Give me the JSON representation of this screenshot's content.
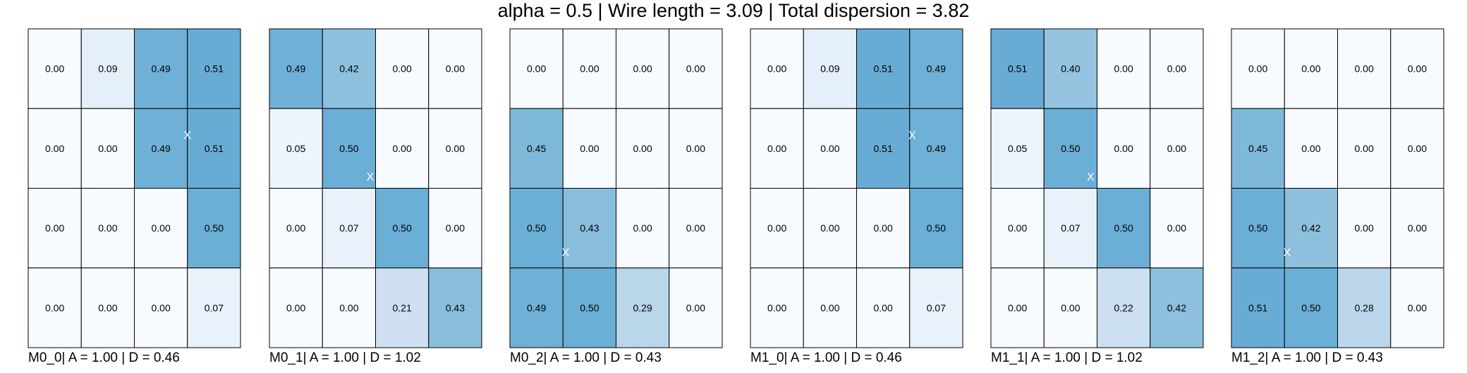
{
  "chart_data": {
    "type": "heatmap",
    "title": "alpha = 0.5 | Wire length = 3.09 | Total dispersion = 3.82",
    "colormap": "Blues",
    "vmin": 0,
    "vmax": 1,
    "cell_text_color": "#000000",
    "marker_color": "#ffffff",
    "marker_symbol": "X",
    "panels": [
      {
        "name": "M0_0",
        "label": "M0_0| A = 1.00 | D = 0.46",
        "values": [
          [
            0.0,
            0.09,
            0.49,
            0.51
          ],
          [
            0.0,
            0.0,
            0.49,
            0.51
          ],
          [
            0.0,
            0.0,
            0.0,
            0.5
          ],
          [
            0.0,
            0.0,
            0.0,
            0.07
          ]
        ],
        "labels": [
          [
            "0.00",
            "0.09",
            "0.49",
            "0.51"
          ],
          [
            "0.00",
            "0.00",
            "0.49",
            "0.51"
          ],
          [
            "0.00",
            "0.00",
            "0.00",
            "0.50"
          ],
          [
            "0.00",
            "0.00",
            "0.00",
            "0.07"
          ]
        ],
        "marker": {
          "row": 1.33,
          "col": 3.0
        }
      },
      {
        "name": "M0_1",
        "label": "M0_1| A = 1.00 | D = 1.02",
        "values": [
          [
            0.49,
            0.42,
            0.0,
            0.0
          ],
          [
            0.05,
            0.5,
            0.0,
            0.0
          ],
          [
            0.0,
            0.07,
            0.5,
            0.0
          ],
          [
            0.0,
            0.0,
            0.21,
            0.43
          ]
        ],
        "labels": [
          [
            "0.49",
            "0.42",
            "0.00",
            "0.00"
          ],
          [
            "0.05",
            "0.50",
            "0.00",
            "0.00"
          ],
          [
            "0.00",
            "0.07",
            "0.50",
            "0.00"
          ],
          [
            "0.00",
            "0.00",
            "0.21",
            "0.43"
          ]
        ],
        "marker": {
          "row": 1.85,
          "col": 1.9
        }
      },
      {
        "name": "M0_2",
        "label": "M0_2| A = 1.00 | D = 0.43",
        "values": [
          [
            0.0,
            0.0,
            0.0,
            0.0
          ],
          [
            0.45,
            0.0,
            0.0,
            0.0
          ],
          [
            0.5,
            0.43,
            0.0,
            0.0
          ],
          [
            0.49,
            0.5,
            0.29,
            0.0
          ]
        ],
        "labels": [
          [
            "0.00",
            "0.00",
            "0.00",
            "0.00"
          ],
          [
            "0.45",
            "0.00",
            "0.00",
            "0.00"
          ],
          [
            "0.50",
            "0.43",
            "0.00",
            "0.00"
          ],
          [
            "0.49",
            "0.50",
            "0.29",
            "0.00"
          ]
        ],
        "marker": {
          "row": 2.8,
          "col": 1.05
        }
      },
      {
        "name": "M1_0",
        "label": "M1_0| A = 1.00 | D = 0.46",
        "values": [
          [
            0.0,
            0.09,
            0.51,
            0.49
          ],
          [
            0.0,
            0.0,
            0.51,
            0.49
          ],
          [
            0.0,
            0.0,
            0.0,
            0.5
          ],
          [
            0.0,
            0.0,
            0.0,
            0.07
          ]
        ],
        "labels": [
          [
            "0.00",
            "0.09",
            "0.51",
            "0.49"
          ],
          [
            "0.00",
            "0.00",
            "0.51",
            "0.49"
          ],
          [
            "0.00",
            "0.00",
            "0.00",
            "0.50"
          ],
          [
            "0.00",
            "0.00",
            "0.00",
            "0.07"
          ]
        ],
        "marker": {
          "row": 1.33,
          "col": 3.05
        }
      },
      {
        "name": "M1_1",
        "label": "M1_1| A = 1.00 | D = 1.02",
        "values": [
          [
            0.51,
            0.4,
            0.0,
            0.0
          ],
          [
            0.05,
            0.5,
            0.0,
            0.0
          ],
          [
            0.0,
            0.07,
            0.5,
            0.0
          ],
          [
            0.0,
            0.0,
            0.22,
            0.42
          ]
        ],
        "labels": [
          [
            "0.51",
            "0.40",
            "0.00",
            "0.00"
          ],
          [
            "0.05",
            "0.50",
            "0.00",
            "0.00"
          ],
          [
            "0.00",
            "0.07",
            "0.50",
            "0.00"
          ],
          [
            "0.00",
            "0.00",
            "0.22",
            "0.42"
          ]
        ],
        "marker": {
          "row": 1.85,
          "col": 1.88
        }
      },
      {
        "name": "M1_2",
        "label": "M1_2| A = 1.00 | D = 0.43",
        "values": [
          [
            0.0,
            0.0,
            0.0,
            0.0
          ],
          [
            0.45,
            0.0,
            0.0,
            0.0
          ],
          [
            0.5,
            0.42,
            0.0,
            0.0
          ],
          [
            0.51,
            0.5,
            0.28,
            0.0
          ]
        ],
        "labels": [
          [
            "0.00",
            "0.00",
            "0.00",
            "0.00"
          ],
          [
            "0.45",
            "0.00",
            "0.00",
            "0.00"
          ],
          [
            "0.50",
            "0.42",
            "0.00",
            "0.00"
          ],
          [
            "0.51",
            "0.50",
            "0.28",
            "0.00"
          ]
        ],
        "marker": {
          "row": 2.8,
          "col": 1.05
        }
      }
    ]
  }
}
